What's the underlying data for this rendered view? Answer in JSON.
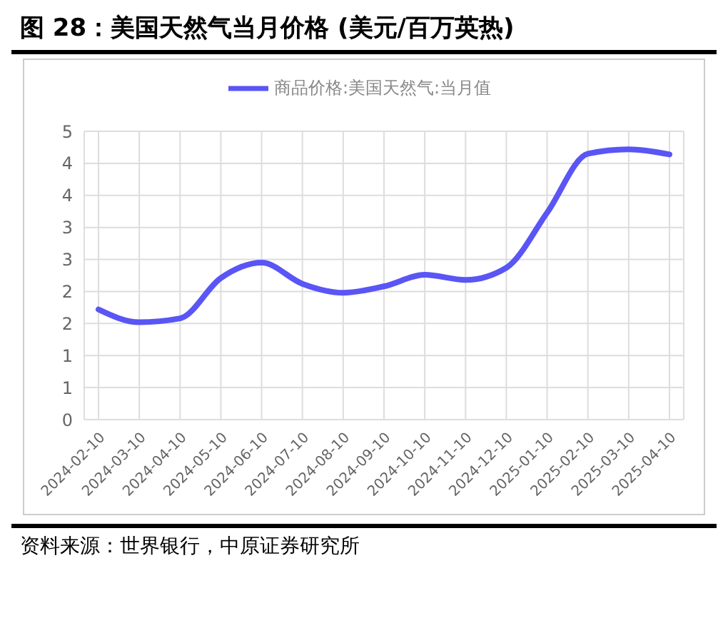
{
  "chart_data": {
    "type": "line",
    "title": "图 28：美国天然气当月价格 (美元/百万英热)",
    "categories": [
      "2024-02-10",
      "2024-03-10",
      "2024-04-10",
      "2024-05-10",
      "2024-06-10",
      "2024-07-10",
      "2024-08-10",
      "2024-09-10",
      "2024-10-10",
      "2024-11-10",
      "2024-12-10",
      "2025-01-10",
      "2025-02-10",
      "2025-03-10",
      "2025-04-10"
    ],
    "series": [
      {
        "name": "商品价格:美国天然气:当月值",
        "color": "#5a55f5",
        "values": [
          1.72,
          1.52,
          1.58,
          2.21,
          2.45,
          2.12,
          1.98,
          2.08,
          2.26,
          2.18,
          2.37,
          3.23,
          4.15,
          4.22,
          4.14
        ]
      }
    ],
    "ylim": [
      0,
      4.5
    ],
    "yticks": [
      0,
      {
        "value": 0.5,
        "label": "1"
      },
      1,
      {
        "value": 1.5,
        "label": "2"
      },
      2,
      {
        "value": 2.5,
        "label": "3"
      },
      3,
      {
        "value": 3.5,
        "label": "4"
      },
      4,
      {
        "value": 4.5,
        "label": "5"
      }
    ],
    "grid": true,
    "legend": "top",
    "marker": "none",
    "annotations": [
      "资料来源：世界银行，中原证券研究所"
    ]
  }
}
